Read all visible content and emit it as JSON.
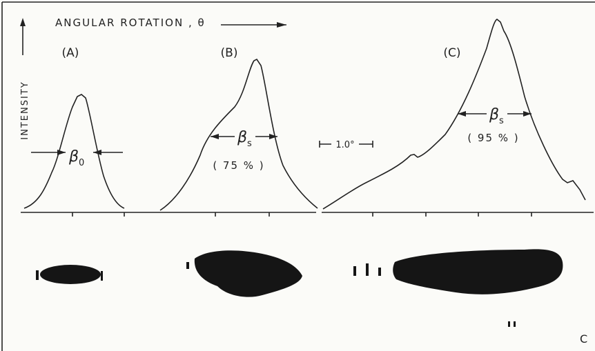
{
  "header": {
    "x_label": "ANGULAR ROTATION , θ",
    "y_label": "INTENSITY"
  },
  "panels": [
    {
      "label": "(A)",
      "width_symbol": "β",
      "width_subscript": "0"
    },
    {
      "label": "(B)",
      "width_symbol": "β",
      "width_subscript": "s",
      "percent": "( 75 % )"
    },
    {
      "label": "(C)",
      "width_symbol": "β",
      "width_subscript": "s",
      "percent": "( 95 % )"
    }
  ],
  "scale_bar": "1.0°",
  "corner_mark": "C"
}
